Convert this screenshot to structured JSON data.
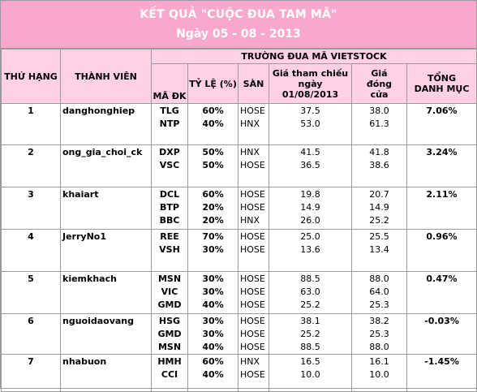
{
  "header": {
    "title": "KẾT QUẢ \"CUỘC ĐUA TAM MÃ\"",
    "date": "Ngày 05 - 08 - 2013"
  },
  "columns": {
    "rank": "THỨ HẠNG",
    "member": "THÀNH VIÊN",
    "race_group": "TRƯỜNG ĐUA MÃ VIETSTOCK",
    "code": "MÃ ĐK",
    "ratio": "TỶ LỆ (%)",
    "exchange": "SÀN",
    "ref_price": "Giá tham chiếu ngày 01/08/2013",
    "close_price": "Giá đóng cửa",
    "total": "TỔNG DANH MỤC"
  },
  "entries": [
    {
      "rank": "1",
      "member": "danghonghiep",
      "total": "7.06%",
      "stocks": [
        {
          "code": "TLG",
          "ratio": "60%",
          "exchange": "HOSE",
          "ref": "37.5",
          "close": "38.0"
        },
        {
          "code": "NTP",
          "ratio": "40%",
          "exchange": "HNX",
          "ref": "53.0",
          "close": "61.3"
        }
      ]
    },
    {
      "rank": "2",
      "member": "ong_gia_choi_ck",
      "total": "3.24%",
      "stocks": [
        {
          "code": "DXP",
          "ratio": "50%",
          "exchange": "HNX",
          "ref": "41.5",
          "close": "41.8"
        },
        {
          "code": "VSC",
          "ratio": "50%",
          "exchange": "HOSE",
          "ref": "36.5",
          "close": "38.6"
        }
      ]
    },
    {
      "rank": "3",
      "member": "khaiart",
      "total": "2.11%",
      "stocks": [
        {
          "code": "DCL",
          "ratio": "60%",
          "exchange": "HOSE",
          "ref": "19.8",
          "close": "20.7"
        },
        {
          "code": "BTP",
          "ratio": "20%",
          "exchange": "HOSE",
          "ref": "14.9",
          "close": "14.9"
        },
        {
          "code": "BBC",
          "ratio": "20%",
          "exchange": "HNX",
          "ref": "26.0",
          "close": "25.2"
        }
      ]
    },
    {
      "rank": "4",
      "member": "JerryNo1",
      "total": "0.96%",
      "stocks": [
        {
          "code": "REE",
          "ratio": "70%",
          "exchange": "HOSE",
          "ref": "25.0",
          "close": "25.5"
        },
        {
          "code": "VSH",
          "ratio": "30%",
          "exchange": "HOSE",
          "ref": "13.6",
          "close": "13.4"
        }
      ]
    },
    {
      "rank": "5",
      "member": "kiemkhach",
      "total": "0.47%",
      "stocks": [
        {
          "code": "MSN",
          "ratio": "30%",
          "exchange": "HOSE",
          "ref": "88.5",
          "close": "88.0"
        },
        {
          "code": "VIC",
          "ratio": "30%",
          "exchange": "HOSE",
          "ref": "63.0",
          "close": "64.0"
        },
        {
          "code": "GMD",
          "ratio": "40%",
          "exchange": "HOSE",
          "ref": "25.2",
          "close": "25.3"
        }
      ]
    },
    {
      "rank": "6",
      "member": "nguoidaovang",
      "total": "-0.03%",
      "stocks": [
        {
          "code": "HSG",
          "ratio": "30%",
          "exchange": "HOSE",
          "ref": "38.1",
          "close": "38.2"
        },
        {
          "code": "GMD",
          "ratio": "30%",
          "exchange": "HOSE",
          "ref": "25.2",
          "close": "25.3"
        },
        {
          "code": "MSN",
          "ratio": "40%",
          "exchange": "HOSE",
          "ref": "88.5",
          "close": "88.0"
        }
      ]
    },
    {
      "rank": "7",
      "member": "nhabuon",
      "total": "-1.45%",
      "stocks": [
        {
          "code": "HMH",
          "ratio": "60%",
          "exchange": "HNX",
          "ref": "16.5",
          "close": "16.1"
        },
        {
          "code": "CCI",
          "ratio": "40%",
          "exchange": "HOSE",
          "ref": "10.0",
          "close": "10.0"
        }
      ]
    }
  ]
}
